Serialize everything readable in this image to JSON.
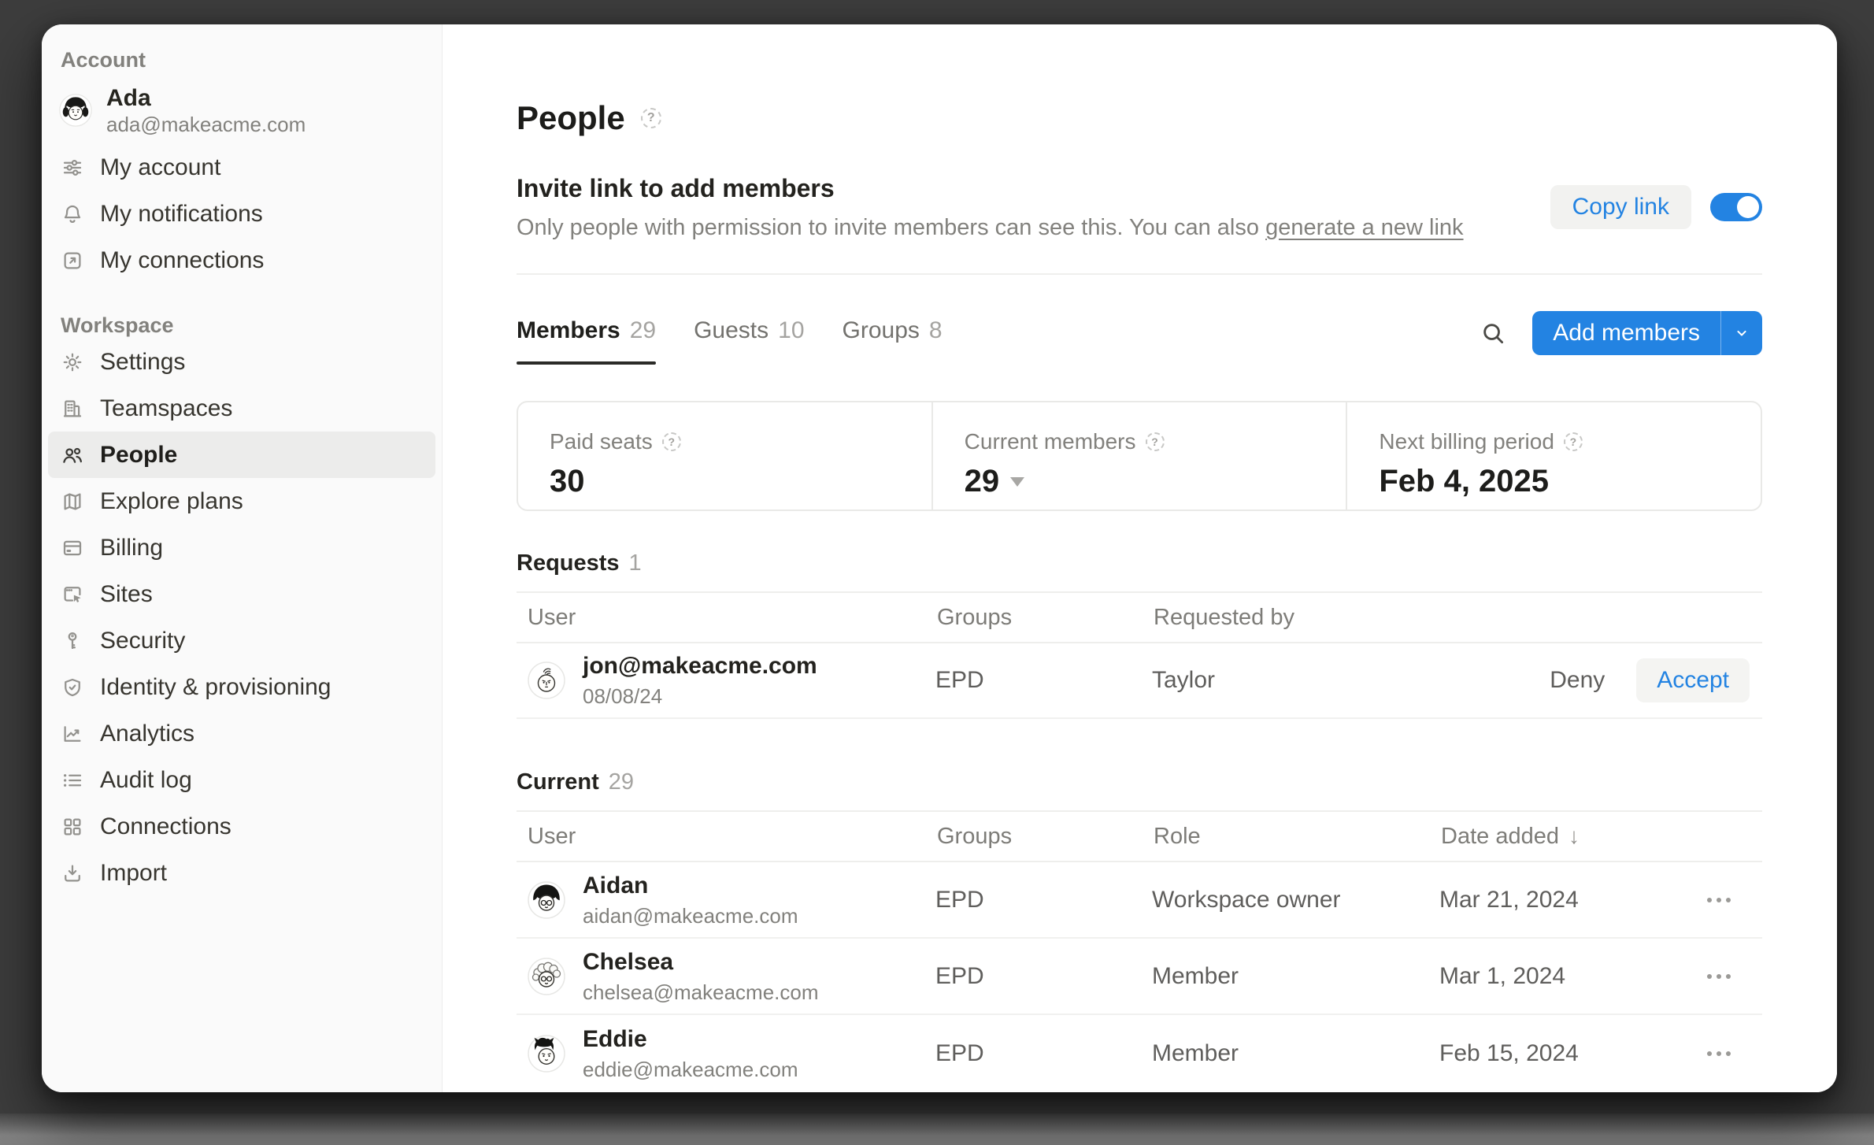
{
  "colors": {
    "accent_blue": "#2383e2",
    "backdrop": "#3d3d3d",
    "selected_item_bg": "#ececeb"
  },
  "icons": {
    "help": "?",
    "sort_desc": "↓"
  },
  "sidebar": {
    "account_section_label": "Account",
    "user": {
      "name": "Ada",
      "email": "ada@makeacme.com",
      "avatar": "ada"
    },
    "account_items": [
      {
        "label": "My account",
        "icon": "sliders-icon"
      },
      {
        "label": "My notifications",
        "icon": "bell-icon"
      },
      {
        "label": "My connections",
        "icon": "arrow-up-right-box-icon"
      }
    ],
    "workspace_section_label": "Workspace",
    "workspace_items": [
      {
        "label": "Settings",
        "icon": "gear-icon"
      },
      {
        "label": "Teamspaces",
        "icon": "building-icon"
      },
      {
        "label": "People",
        "icon": "people-icon",
        "active": true
      },
      {
        "label": "Explore plans",
        "icon": "map-icon"
      },
      {
        "label": "Billing",
        "icon": "credit-card-icon"
      },
      {
        "label": "Sites",
        "icon": "browser-cursor-icon"
      },
      {
        "label": "Security",
        "icon": "key-icon"
      },
      {
        "label": "Identity & provisioning",
        "icon": "shield-check-icon"
      },
      {
        "label": "Analytics",
        "icon": "line-chart-icon"
      },
      {
        "label": "Audit log",
        "icon": "list-icon"
      },
      {
        "label": "Connections",
        "icon": "grid-icon"
      },
      {
        "label": "Import",
        "icon": "import-icon"
      }
    ]
  },
  "header": {
    "title": "People"
  },
  "invite": {
    "title": "Invite link to add members",
    "description": "Only people with permission to invite members can see this. You can also ",
    "link_label": "generate a new link",
    "copy_button_label": "Copy link",
    "toggle_state": "on"
  },
  "tabs": {
    "items": [
      {
        "label": "Members",
        "count": "29",
        "active": true
      },
      {
        "label": "Guests",
        "count": "10",
        "active": false
      },
      {
        "label": "Groups",
        "count": "8",
        "active": false
      }
    ]
  },
  "toolbar": {
    "add_members_label": "Add members"
  },
  "stats": {
    "items": [
      {
        "label": "Paid seats",
        "value": "30"
      },
      {
        "label": "Current members",
        "value": "29",
        "has_dropdown": true
      },
      {
        "label": "Next billing period",
        "value": "Feb 4, 2025"
      }
    ]
  },
  "requests": {
    "title": "Requests",
    "count": "1",
    "columns": {
      "user": "User",
      "groups": "Groups",
      "requested_by": "Requested by"
    },
    "rows": [
      {
        "email": "jon@makeacme.com",
        "date": "08/08/24",
        "groups": "EPD",
        "requested_by": "Taylor",
        "deny_label": "Deny",
        "accept_label": "Accept",
        "avatar": "jon"
      }
    ]
  },
  "current": {
    "title": "Current",
    "count": "29",
    "columns": {
      "user": "User",
      "groups": "Groups",
      "role": "Role",
      "date_added": "Date added"
    },
    "rows": [
      {
        "name": "Aidan",
        "email": "aidan@makeacme.com",
        "groups": "EPD",
        "role": "Workspace owner",
        "date_added": "Mar 21, 2024",
        "avatar": "aidan"
      },
      {
        "name": "Chelsea",
        "email": "chelsea@makeacme.com",
        "groups": "EPD",
        "role": "Member",
        "date_added": "Mar 1, 2024",
        "avatar": "chelsea"
      },
      {
        "name": "Eddie",
        "email": "eddie@makeacme.com",
        "groups": "EPD",
        "role": "Member",
        "date_added": "Feb 15, 2024",
        "avatar": "eddie"
      }
    ]
  }
}
